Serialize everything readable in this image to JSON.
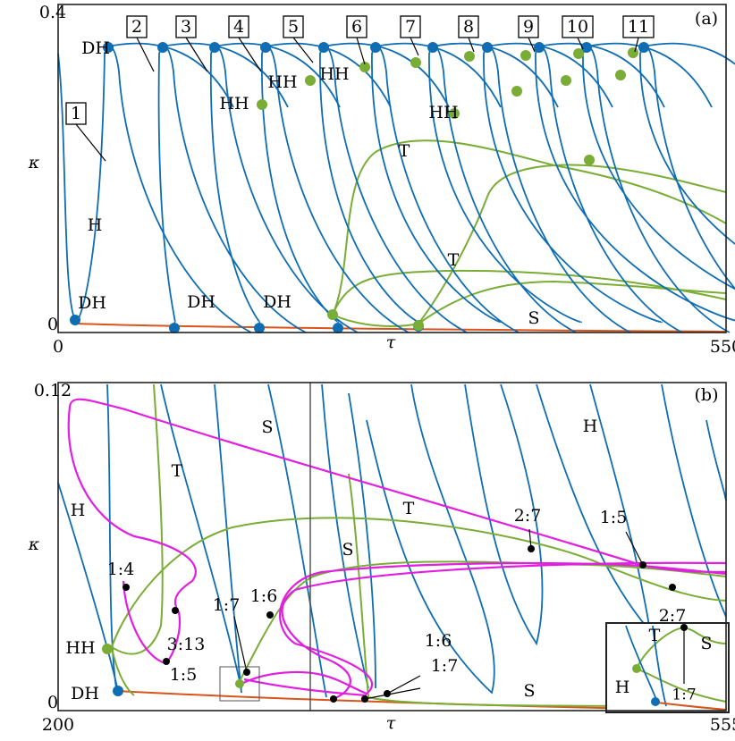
{
  "chart_data": [
    {
      "type": "line",
      "panel": "(a)",
      "x_label": "τ",
      "y_label": "κ",
      "xlim": [
        0,
        550
      ],
      "ylim": [
        0,
        0.4
      ],
      "xticks": [
        0,
        550
      ],
      "yticks": [
        0,
        0.4
      ],
      "boxed_labels": [
        "1",
        "2",
        "3",
        "4",
        "5",
        "6",
        "7",
        "8",
        "9",
        "10",
        "11"
      ],
      "annotations": [
        "DH",
        "H",
        "DH",
        "DH",
        "DH",
        "HH",
        "HH",
        "HH",
        "HH",
        "T",
        "T",
        "S"
      ]
    },
    {
      "type": "line",
      "panel": "(b)",
      "x_label": "τ",
      "y_label": "κ",
      "xlim": [
        200,
        555
      ],
      "ylim": [
        0,
        0.12
      ],
      "xticks": [
        200,
        555
      ],
      "yticks": [
        0,
        0.12
      ],
      "annotations": [
        "S",
        "T",
        "H",
        "T",
        "S",
        "H",
        "HH",
        "DH",
        "S",
        "1:4",
        "3:13",
        "1:5",
        "1:7",
        "1:6",
        "1:6",
        "1:7",
        "2:7",
        "1:5",
        "2:7",
        "T",
        "S",
        "1:7",
        "H"
      ]
    }
  ]
}
